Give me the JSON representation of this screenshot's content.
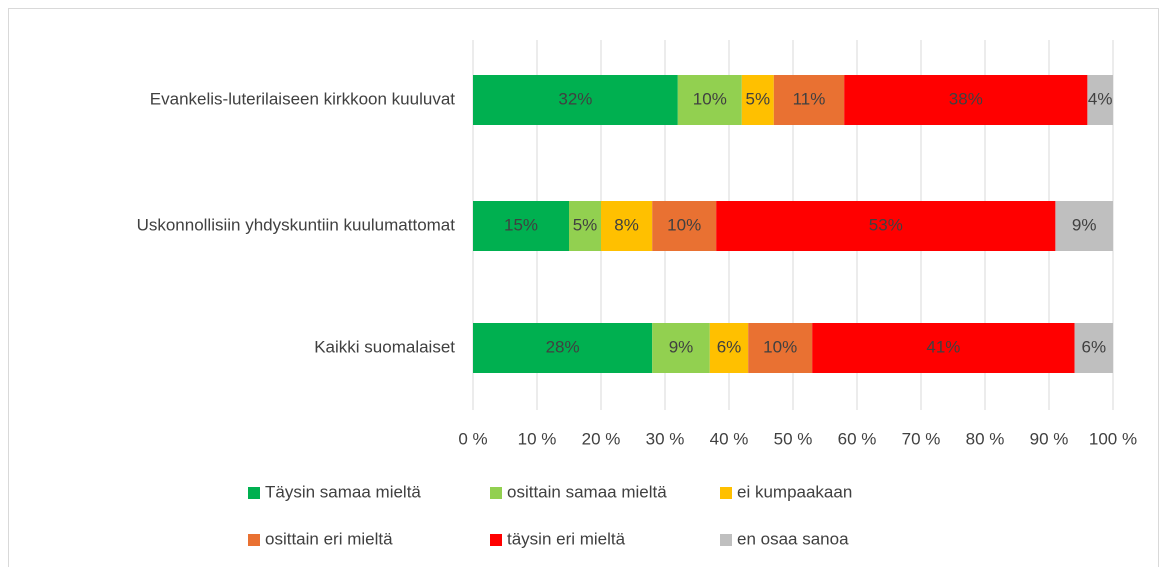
{
  "chart_data": {
    "type": "stacked-barh",
    "categories": [
      "Evankelis-luterilaiseen kirkkoon kuuluvat",
      "Uskonnollisiin yhdyskuntiin kuulumattomat",
      "Kaikki suomalaiset"
    ],
    "series": [
      {
        "name": "Täysin samaa mieltä",
        "color": "#00b050",
        "values": [
          32,
          15,
          28
        ],
        "value_labels": [
          "32%",
          "15%",
          "28%"
        ]
      },
      {
        "name": "osittain samaa mieltä",
        "color": "#92d050",
        "values": [
          10,
          5,
          9
        ],
        "value_labels": [
          "10%",
          "5%",
          "9%"
        ]
      },
      {
        "name": "ei kumpaakaan",
        "color": "#ffc000",
        "values": [
          5,
          8,
          6
        ],
        "value_labels": [
          "5%",
          "8%",
          "6%"
        ]
      },
      {
        "name": "osittain eri mieltä",
        "color": "#e97132",
        "values": [
          11,
          10,
          10
        ],
        "value_labels": [
          "11%",
          "10%",
          "10%"
        ]
      },
      {
        "name": "täysin eri mieltä",
        "color": "#ff0000",
        "values": [
          38,
          53,
          41
        ],
        "value_labels": [
          "38%",
          "53%",
          "41%"
        ]
      },
      {
        "name": "en osaa sanoa",
        "color": "#bfbfbf",
        "values": [
          4,
          9,
          6
        ],
        "value_labels": [
          "4%",
          "9%",
          "6%"
        ]
      }
    ],
    "xlim": [
      0,
      100
    ],
    "xticks": [
      {
        "value": 0,
        "label": "0 %"
      },
      {
        "value": 10,
        "label": "10 %"
      },
      {
        "value": 20,
        "label": "20 %"
      },
      {
        "value": 30,
        "label": "30 %"
      },
      {
        "value": 40,
        "label": "40 %"
      },
      {
        "value": 50,
        "label": "50 %"
      },
      {
        "value": 60,
        "label": "60 %"
      },
      {
        "value": 70,
        "label": "70 %"
      },
      {
        "value": 80,
        "label": "80 %"
      },
      {
        "value": 90,
        "label": "90 %"
      },
      {
        "value": 100,
        "label": "100 %"
      }
    ],
    "grid": true,
    "legend": "bottom"
  }
}
